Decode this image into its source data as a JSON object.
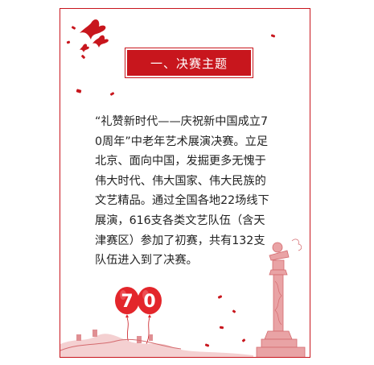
{
  "section": {
    "title": "一、决赛主题"
  },
  "content": {
    "paragraph": "“礼赞新时代——庆祝新中国成立70周年”中老年艺术展演决赛。立足北京、面向中国，发掘更多无愧于伟大时代、伟大国家、伟大民族的文艺精品。通过全国各地22场线下展演，616支各类文艺队伍（含天津赛区）参加了初赛，共有132支队伍进入到了决赛。"
  },
  "decorations": {
    "balloon_digits": [
      "7",
      "0"
    ],
    "balloon_color": "#e3262b",
    "accent_color": "#c8161d"
  }
}
